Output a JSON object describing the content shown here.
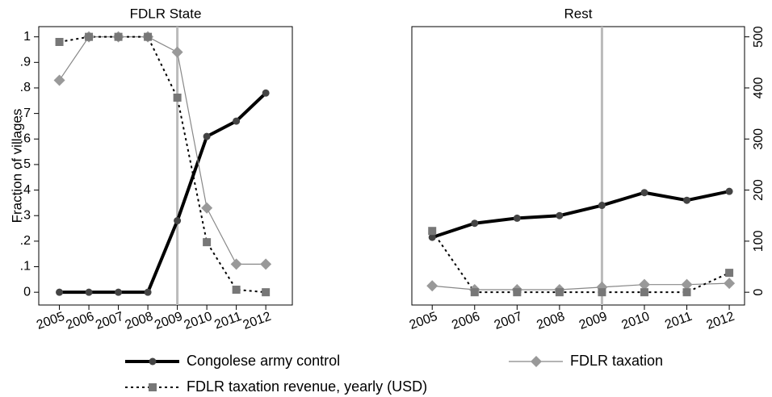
{
  "chart_data": [
    {
      "type": "line",
      "title": "FDLR State",
      "y_label": "Fraction of villages",
      "x": [
        2005,
        2006,
        2007,
        2008,
        2009,
        2010,
        2011,
        2012
      ],
      "xlim": [
        2004.3,
        2012.9
      ],
      "xticks": [
        2005,
        2006,
        2007,
        2008,
        2009,
        2010,
        2011,
        2012
      ],
      "ylim": [
        -0.05,
        1.04
      ],
      "yticks": [
        0,
        {
          "value": 0.1,
          "label": ".1"
        },
        {
          "value": 0.2,
          "label": ".2"
        },
        {
          "value": 0.3,
          "label": ".3"
        },
        {
          "value": 0.4,
          "label": ".4"
        },
        {
          "value": 0.5,
          "label": ".5"
        },
        {
          "value": 0.6,
          "label": ".6"
        },
        {
          "value": 0.7,
          "label": ".7"
        },
        {
          "value": 0.8,
          "label": ".8"
        },
        {
          "value": 0.9,
          "label": ".9"
        },
        1
      ],
      "y2lim": [
        -25,
        520
      ],
      "vline": 2009,
      "vline_color": "#bbbbbb",
      "series": [
        {
          "name": "Congolese army control",
          "color": "#000000",
          "marker_color": "#444444",
          "marker": "circle",
          "style": "solid",
          "width": 4,
          "values": [
            0,
            0,
            0,
            0,
            0.28,
            0.61,
            0.67,
            0.78
          ]
        },
        {
          "name": "FDLR taxation",
          "color": "#888888",
          "marker_color": "#999999",
          "marker": "diamond",
          "style": "solid",
          "width": 1.2,
          "values": [
            0.83,
            1,
            1,
            1,
            0.94,
            0.33,
            0.11,
            0.11
          ]
        },
        {
          "name": "FDLR taxation revenue, yearly (USD)",
          "color": "#000000",
          "marker_color": "#777777",
          "marker": "square",
          "style": "dotted",
          "width": 2,
          "axis": "y2",
          "values": [
            490,
            500,
            500,
            500,
            381,
            98,
            5,
            0
          ]
        }
      ]
    },
    {
      "type": "line",
      "title": "Rest",
      "x": [
        2005,
        2006,
        2007,
        2008,
        2009,
        2010,
        2011,
        2012
      ],
      "xlim": [
        2004.52,
        2012.36
      ],
      "xticks": [
        2005,
        2006,
        2007,
        2008,
        2009,
        2010,
        2011,
        2012
      ],
      "ylim": [
        -0.05,
        1.04
      ],
      "y2lim": [
        -25,
        520
      ],
      "y2ticks": [
        0,
        100,
        200,
        300,
        400,
        500
      ],
      "vline": 2009,
      "vline_color": "#bbbbbb",
      "series": [
        {
          "color": "#000000",
          "marker_color": "#444444",
          "marker": "circle",
          "style": "solid",
          "width": 4,
          "values": [
            0.215,
            0.27,
            0.29,
            0.3,
            0.34,
            0.39,
            0.36,
            0.395
          ]
        },
        {
          "color": "#888888",
          "marker_color": "#999999",
          "marker": "diamond",
          "style": "solid",
          "width": 1.2,
          "values": [
            0.025,
            0.01,
            0.01,
            0.01,
            0.02,
            0.03,
            0.03,
            0.035
          ]
        },
        {
          "color": "#000000",
          "marker_color": "#777777",
          "marker": "square",
          "style": "dotted",
          "width": 2,
          "axis": "y2",
          "values": [
            120,
            0,
            0,
            0,
            0,
            0,
            0,
            38
          ]
        }
      ]
    }
  ]
}
